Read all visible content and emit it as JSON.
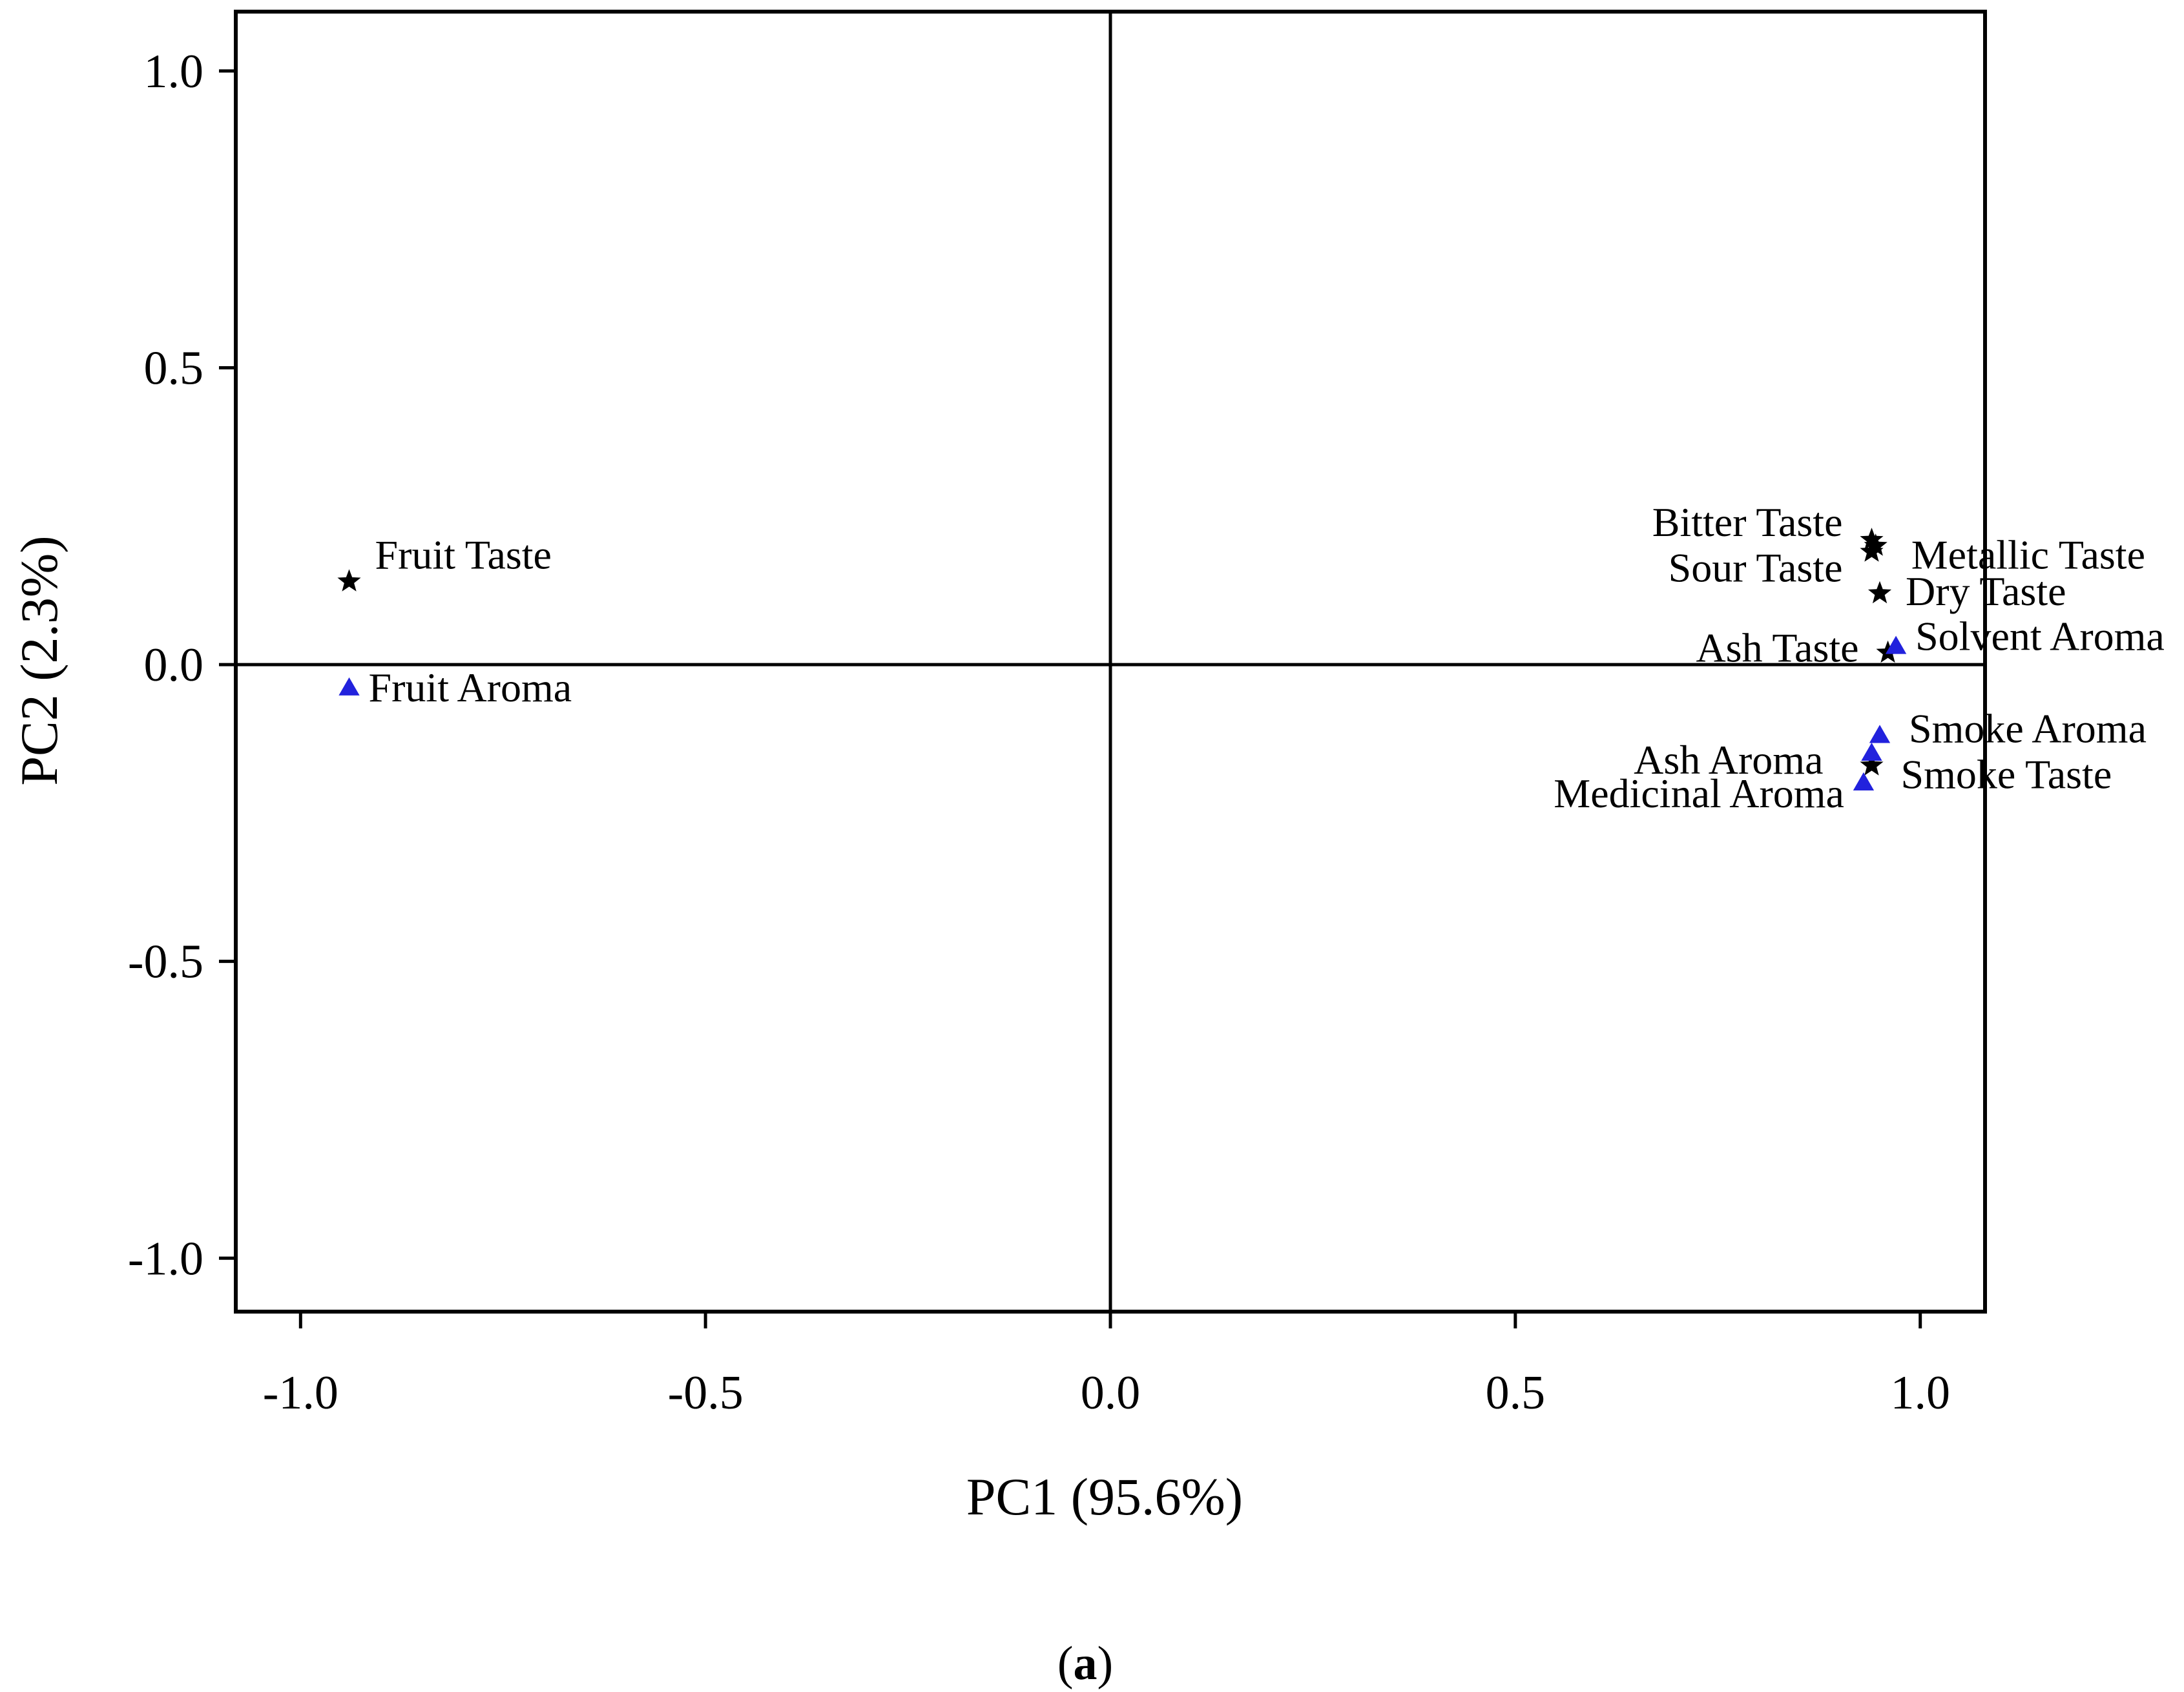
{
  "chart_data": {
    "type": "scatter",
    "xlabel": "PC1 (95.6%)",
    "ylabel": "PC2 (2.3%)",
    "xlim": [
      -1.08,
      1.08
    ],
    "ylim": [
      -1.09,
      1.1
    ],
    "xticks": [
      -1.0,
      -0.5,
      0.0,
      0.5,
      1.0
    ],
    "yticks": [
      -1.0,
      -0.5,
      0.0,
      0.5,
      1.0
    ],
    "xtick_labels": [
      "-1.0",
      "-0.5",
      "0.0",
      "0.5",
      "1.0"
    ],
    "ytick_labels": [
      "-1.0",
      "-0.5",
      "0.0",
      "0.5",
      "1.0"
    ],
    "reference_lines": {
      "x": 0,
      "y": 0
    },
    "grid": false,
    "legend": "none",
    "panel_label": {
      "open": "(",
      "bold": "a",
      "close": ")"
    },
    "series": [
      {
        "marker": "star",
        "color": "#000000",
        "points": [
          {
            "label": "Fruit Taste",
            "x": -0.94,
            "y": 0.14
          },
          {
            "label": "Bitter Taste",
            "x": 0.94,
            "y": 0.21
          },
          {
            "label": "Metallic Taste",
            "x": 0.945,
            "y": 0.2
          },
          {
            "label": "Sour Taste",
            "x": 0.94,
            "y": 0.19
          },
          {
            "label": "Dry Taste",
            "x": 0.95,
            "y": 0.12
          },
          {
            "label": "Ash Taste",
            "x": 0.96,
            "y": 0.02
          },
          {
            "label": "Smoke Taste",
            "x": 0.94,
            "y": -0.17
          }
        ]
      },
      {
        "marker": "triangle",
        "color": "#2222dd",
        "points": [
          {
            "label": "Fruit Aroma",
            "x": -0.94,
            "y": -0.04
          },
          {
            "label": "Solvent Aroma",
            "x": 0.97,
            "y": 0.03
          },
          {
            "label": "Smoke Aroma",
            "x": 0.95,
            "y": -0.12
          },
          {
            "label": "Ash Aroma",
            "x": 0.94,
            "y": -0.15
          },
          {
            "label": "Medicinal Aroma",
            "x": 0.93,
            "y": -0.2
          }
        ]
      }
    ]
  }
}
